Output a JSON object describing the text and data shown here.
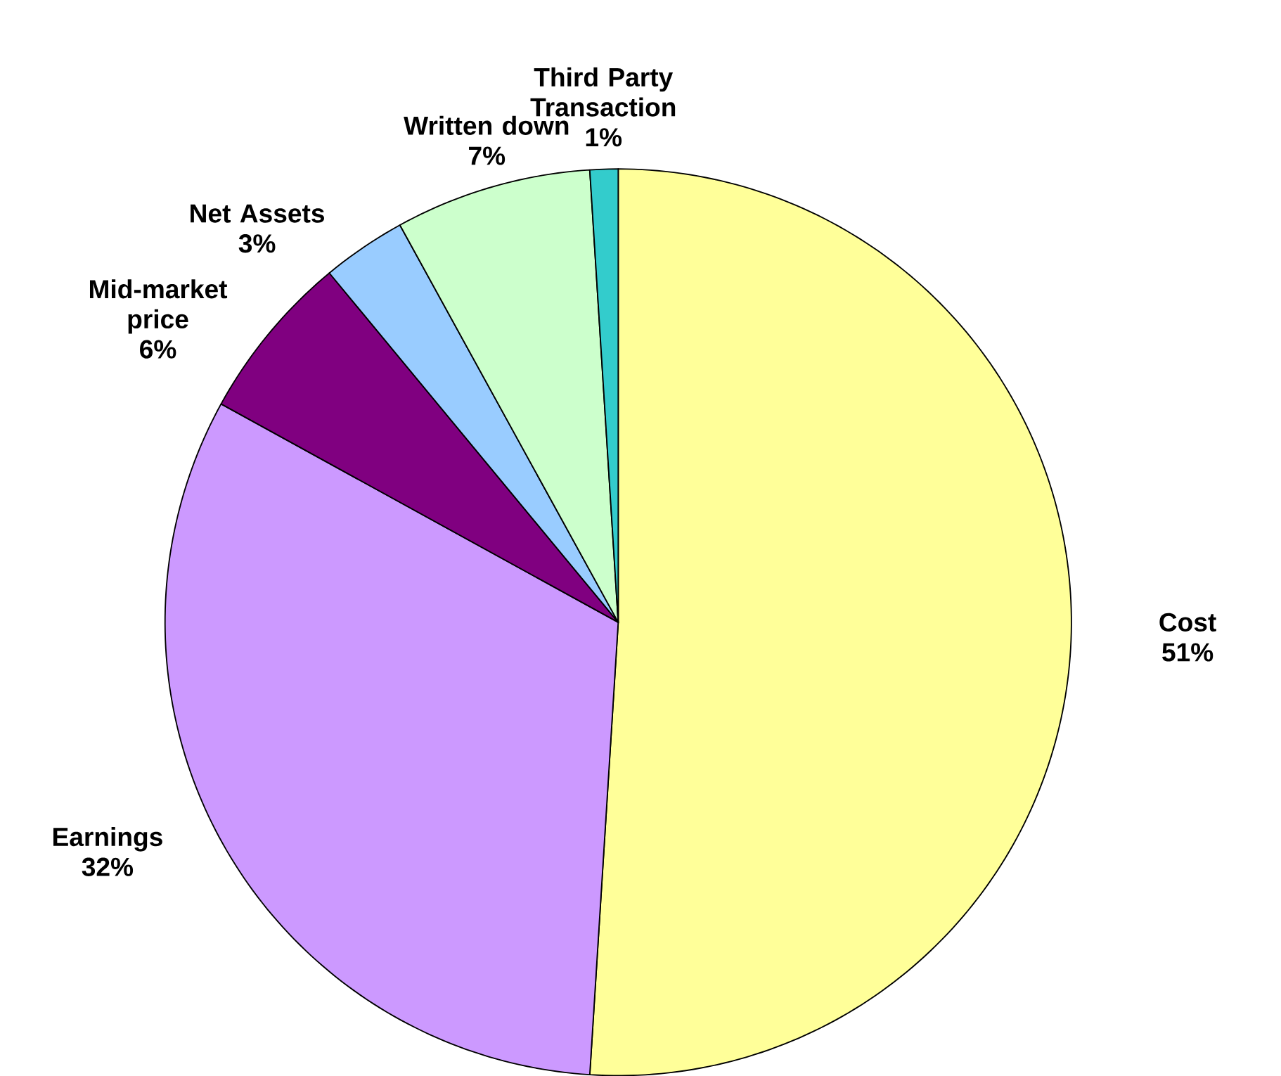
{
  "chart_data": {
    "type": "pie",
    "categories": [
      "Cost",
      "Earnings",
      "Mid-market price",
      "Net Assets",
      "Written down",
      "Third Party Transaction"
    ],
    "values": [
      51,
      32,
      6,
      3,
      7,
      1
    ],
    "colors": [
      "#ffff99",
      "#cc99ff",
      "#800080",
      "#99ccff",
      "#ccffcc",
      "#33cccc"
    ],
    "value_labels": [
      "51%",
      "32%",
      "6%",
      "3%",
      "7%",
      "1%"
    ]
  }
}
